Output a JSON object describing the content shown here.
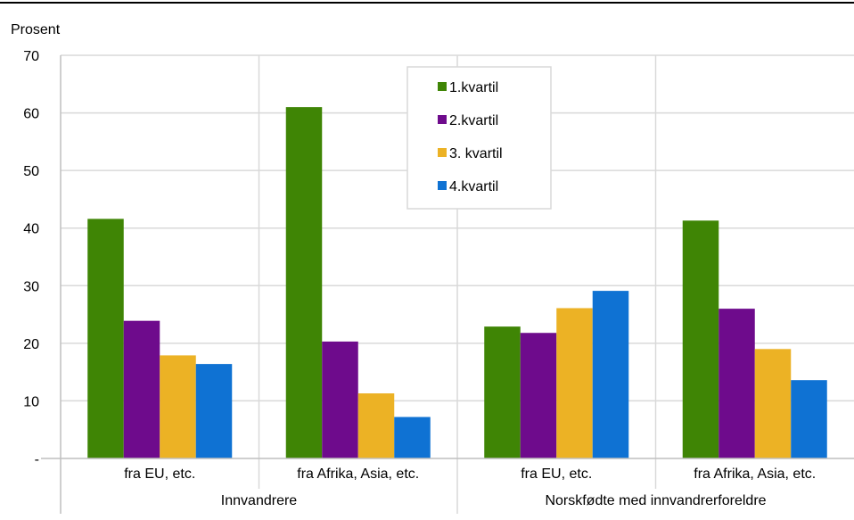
{
  "chart_data": {
    "type": "bar",
    "title": "",
    "ylabel": "Prosent",
    "xlabel": "",
    "ylim": [
      0,
      70
    ],
    "yticks": [
      {
        "value": 0,
        "label": "-"
      },
      {
        "value": 10,
        "label": "10"
      },
      {
        "value": 20,
        "label": "20"
      },
      {
        "value": 30,
        "label": "30"
      },
      {
        "value": 40,
        "label": "40"
      },
      {
        "value": 50,
        "label": "50"
      },
      {
        "value": 60,
        "label": "60"
      },
      {
        "value": 70,
        "label": "70"
      }
    ],
    "grid": true,
    "legend_position": "top-center",
    "categories": [
      "fra EU, etc.",
      "fra Afrika, Asia, etc.",
      "fra EU, etc.",
      "fra Afrika, Asia, etc."
    ],
    "groups": [
      {
        "label": "Innvandrere",
        "span": [
          0,
          1
        ]
      },
      {
        "label": "Norskfødte med innvandrerforeldre",
        "span": [
          2,
          3
        ]
      }
    ],
    "series": [
      {
        "name": "1.kvartil",
        "color": "#3f8505",
        "values": [
          41.6,
          61.0,
          22.9,
          41.3
        ]
      },
      {
        "name": "2.kvartil",
        "color": "#6e0b8c",
        "values": [
          23.9,
          20.3,
          21.8,
          26.0
        ]
      },
      {
        "name": "3. kvartil",
        "color": "#ecb225",
        "values": [
          17.9,
          11.3,
          26.1,
          19.0
        ]
      },
      {
        "name": "4.kvartil",
        "color": "#0f72d3",
        "values": [
          16.4,
          7.2,
          29.1,
          13.6
        ]
      }
    ]
  }
}
